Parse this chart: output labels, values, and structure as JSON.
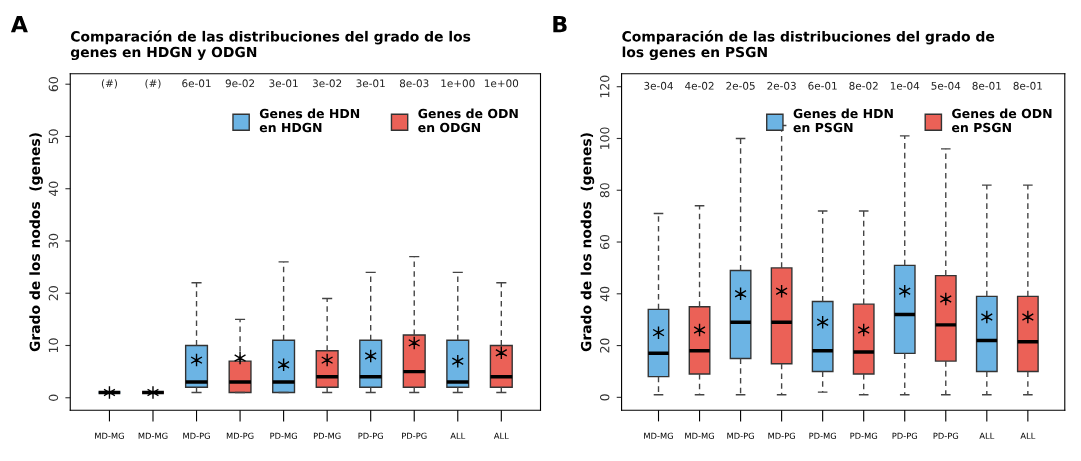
{
  "chart_data": [
    {
      "type": "box",
      "title": "Comparación de las distribuciones del grado de los genes en HDGN y ODGN",
      "ylabel": "Grado de los nodos  (genes)",
      "categories": [
        "MD-MG",
        "MD-MG",
        "MD-PG",
        "MD-PG",
        "PD-MG",
        "PD-MG",
        "PD-PG",
        "PD-PG",
        "ALL",
        "ALL"
      ],
      "ylim": [
        -2.4,
        62
      ],
      "yticks": [
        0,
        10,
        20,
        30,
        40,
        50,
        60
      ],
      "legend": "top",
      "grid": false,
      "annotations": [
        "A",
        "(#)",
        "(#)",
        "6e-01",
        "9e-02",
        "3e-01",
        "3e-02",
        "3e-01",
        "8e-03",
        "1e+00",
        "1e+00"
      ],
      "series": [
        {
          "name": "Genes de HDN\nen HDGN",
          "color": "#6cb4e4",
          "boxes": [
            {
              "low": 1,
              "q1": 1,
              "median": 1,
              "q3": 1,
              "high": 1,
              "mean": 1
            },
            null,
            {
              "low": 1,
              "q1": 2,
              "median": 3,
              "q3": 10,
              "high": 22,
              "mean": 7.2
            },
            null,
            {
              "low": 1,
              "q1": 1,
              "median": 3,
              "q3": 11,
              "high": 26,
              "mean": 6.3
            },
            null,
            {
              "low": 1,
              "q1": 2,
              "median": 4,
              "q3": 11,
              "high": 24,
              "mean": 8
            },
            null,
            {
              "low": 1,
              "q1": 2,
              "median": 3,
              "q3": 11,
              "high": 24,
              "mean": 7
            },
            null
          ]
        },
        {
          "name": "Genes de ODN\nen ODGN",
          "color": "#eb6157",
          "boxes": [
            null,
            {
              "low": 1,
              "q1": 1,
              "median": 1,
              "q3": 1,
              "high": 1,
              "mean": 1
            },
            null,
            {
              "low": 1,
              "q1": 1,
              "median": 3,
              "q3": 7,
              "high": 15,
              "mean": 7.6
            },
            null,
            {
              "low": 1,
              "q1": 2,
              "median": 4,
              "q3": 9,
              "high": 19,
              "mean": 7.2
            },
            null,
            {
              "low": 1,
              "q1": 2,
              "median": 5,
              "q3": 12,
              "high": 27,
              "mean": 10.5
            },
            null,
            {
              "low": 1,
              "q1": 2,
              "median": 4,
              "q3": 10,
              "high": 22,
              "mean": 8.6
            }
          ]
        }
      ]
    },
    {
      "type": "box",
      "title": "Comparación de las distribuciones del grado de los genes en PSGN",
      "ylabel": "Grado de los nodos  (genes)",
      "categories": [
        "MD-MG",
        "MD-MG",
        "MD-PG",
        "MD-PG",
        "PD-MG",
        "PD-MG",
        "PD-PG",
        "PD-PG",
        "ALL",
        "ALL"
      ],
      "ylim": [
        -5,
        125
      ],
      "yticks": [
        0,
        20,
        40,
        60,
        80,
        100,
        120
      ],
      "legend": "top",
      "grid": false,
      "annotations": [
        "B",
        "3e-04",
        "4e-02",
        "2e-05",
        "2e-03",
        "6e-01",
        "8e-02",
        "1e-04",
        "5e-04",
        "8e-01",
        "8e-01"
      ],
      "series": [
        {
          "name": "Genes de HDN\nen PSGN",
          "color": "#6cb4e4",
          "boxes": [
            {
              "low": 1,
              "q1": 8,
              "median": 17,
              "q3": 34,
              "high": 71,
              "mean": 25
            },
            null,
            {
              "low": 1,
              "q1": 15,
              "median": 29,
              "q3": 49,
              "high": 100,
              "mean": 40
            },
            null,
            {
              "low": 2,
              "q1": 10,
              "median": 18,
              "q3": 37,
              "high": 72,
              "mean": 29
            },
            null,
            {
              "low": 1,
              "q1": 17,
              "median": 32,
              "q3": 51,
              "high": 101,
              "mean": 41
            },
            null,
            {
              "low": 1,
              "q1": 10,
              "median": 22,
              "q3": 39,
              "high": 82,
              "mean": 31
            },
            null
          ]
        },
        {
          "name": "Genes de ODN\nen PSGN",
          "color": "#eb6157",
          "boxes": [
            null,
            {
              "low": 1,
              "q1": 9,
              "median": 18,
              "q3": 35,
              "high": 74,
              "mean": 26
            },
            null,
            {
              "low": 1,
              "q1": 13,
              "median": 29,
              "q3": 50,
              "high": 105,
              "mean": 41
            },
            null,
            {
              "low": 1,
              "q1": 9,
              "median": 17.5,
              "q3": 36,
              "high": 72,
              "mean": 26
            },
            null,
            {
              "low": 1,
              "q1": 14,
              "median": 28,
              "q3": 47,
              "high": 96,
              "mean": 38
            },
            null,
            {
              "low": 1,
              "q1": 10,
              "median": 21.5,
              "q3": 39,
              "high": 82,
              "mean": 31
            }
          ]
        }
      ]
    }
  ]
}
